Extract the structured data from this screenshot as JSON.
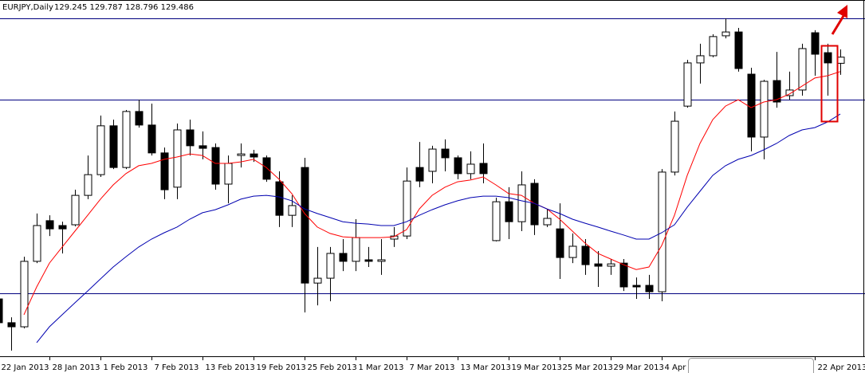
{
  "chart_data": {
    "type": "candlestick",
    "title": "EURJPY,Daily",
    "subtitle": "129.245 129.787 128.796 129.486",
    "categories": [
      "22 Jan 2013",
      null,
      null,
      null,
      "28 Jan 2013",
      null,
      null,
      null,
      "1 Feb 2013",
      null,
      null,
      null,
      "7 Feb 2013",
      null,
      null,
      null,
      "13 Feb 2013",
      null,
      null,
      null,
      "19 Feb 2013",
      null,
      null,
      null,
      "25 Feb 2013",
      null,
      null,
      null,
      "1 Mar 2013",
      null,
      null,
      null,
      "7 Mar 2013",
      null,
      null,
      null,
      "13 Mar 2013",
      null,
      null,
      null,
      "19 Mar 2013",
      null,
      null,
      null,
      "25 Mar 2013",
      null,
      null,
      null,
      "29 Mar 2013",
      null,
      null,
      null,
      "4 Apr 2013",
      null,
      null,
      null,
      null,
      null,
      null,
      null,
      null,
      null,
      null,
      null,
      "22 Apr 2013",
      null,
      null
    ],
    "open": [
      120.03,
      119.1,
      118.94,
      121.5,
      123.09,
      122.9,
      122.93,
      124.08,
      124.89,
      126.8,
      125.17,
      127.36,
      126.83,
      125.74,
      124.4,
      126.64,
      126.02,
      125.95,
      124.52,
      125.64,
      125.7,
      125.55,
      124.61,
      123.3,
      125.17,
      120.65,
      120.84,
      121.81,
      121.5,
      121.56,
      121.5,
      122.37,
      122.49,
      125.17,
      125.02,
      125.89,
      125.55,
      124.93,
      125.33,
      122.31,
      123.83,
      123.05,
      124.55,
      122.93,
      122.77,
      121.65,
      122.09,
      121.4,
      121.31,
      121.43,
      120.56,
      120.56,
      120.31,
      124.99,
      127.57,
      129.26,
      129.54,
      130.32,
      130.47,
      128.82,
      126.36,
      128.57,
      127.98,
      128.2,
      130.44,
      129.66,
      129.245
    ],
    "high": [
      120.19,
      119.31,
      121.68,
      123.37,
      123.3,
      123.05,
      124.3,
      125.64,
      127.2,
      127.04,
      127.42,
      127.82,
      127.67,
      125.95,
      126.89,
      127.04,
      126.58,
      126.11,
      125.64,
      126.11,
      125.86,
      125.64,
      125.02,
      124.08,
      125.55,
      122.06,
      122.06,
      122.37,
      123.15,
      122.06,
      122.37,
      122.84,
      125.17,
      126.17,
      126.02,
      126.27,
      125.64,
      125.8,
      126.11,
      123.99,
      124.4,
      125.02,
      124.71,
      123.55,
      123.77,
      122.59,
      122.37,
      121.9,
      121.59,
      121.59,
      120.87,
      120.97,
      125.11,
      127.36,
      129.38,
      130.01,
      130.38,
      131.0,
      130.63,
      129.07,
      128.6,
      129.69,
      128.92,
      130.01,
      130.54,
      130.01,
      129.787
    ],
    "low": [
      118.94,
      118.01,
      118.88,
      121.43,
      122.49,
      121.81,
      122.87,
      123.93,
      124.8,
      125.11,
      125.11,
      126.73,
      125.64,
      123.93,
      123.93,
      125.64,
      125.49,
      124.3,
      123.77,
      125.17,
      125.39,
      124.61,
      122.84,
      122.84,
      119.5,
      119.78,
      119.94,
      121.12,
      121.12,
      121.28,
      120.97,
      122.06,
      122.37,
      124.4,
      124.55,
      125.02,
      124.71,
      124.71,
      124.55,
      122.28,
      122.37,
      122.68,
      122.53,
      122.84,
      120.81,
      121.43,
      120.97,
      120.5,
      120.97,
      120.34,
      120.03,
      120.03,
      119.94,
      124.86,
      127.51,
      128.45,
      129.48,
      130.22,
      128.92,
      125.8,
      125.49,
      127.51,
      127.82,
      127.98,
      128.76,
      127.98,
      128.796
    ],
    "close": [
      119.1,
      118.94,
      121.5,
      122.9,
      122.77,
      122.77,
      124.08,
      124.89,
      126.8,
      125.17,
      127.36,
      126.83,
      125.74,
      124.3,
      126.64,
      126.02,
      125.92,
      124.52,
      125.33,
      125.7,
      125.58,
      124.71,
      123.3,
      123.68,
      120.65,
      120.84,
      121.81,
      121.5,
      122.43,
      121.5,
      121.56,
      122.49,
      124.64,
      124.64,
      125.89,
      125.55,
      124.93,
      125.3,
      124.93,
      123.83,
      123.05,
      124.49,
      122.93,
      123.18,
      121.65,
      122.09,
      121.37,
      121.31,
      121.4,
      120.5,
      120.5,
      120.31,
      124.99,
      126.98,
      129.26,
      129.54,
      130.29,
      130.47,
      129.04,
      126.36,
      128.54,
      127.73,
      128.2,
      129.82,
      129.6,
      129.26,
      129.486
    ],
    "up_color": "#ffffff",
    "down_color": "#000000",
    "wick_color": "#000000",
    "overlays": [
      {
        "color": "#ff0000",
        "values": [
          null,
          null,
          119.41,
          120.5,
          121.43,
          122.06,
          122.68,
          123.3,
          123.93,
          124.49,
          124.93,
          125.24,
          125.33,
          125.49,
          125.58,
          125.7,
          125.64,
          125.33,
          125.33,
          125.39,
          125.49,
          125.17,
          124.71,
          124.15,
          123.37,
          122.84,
          122.59,
          122.46,
          122.43,
          122.43,
          122.43,
          122.46,
          122.74,
          123.55,
          124.08,
          124.4,
          124.61,
          124.68,
          124.8,
          124.49,
          124.15,
          124.08,
          123.77,
          123.55,
          123.15,
          122.68,
          122.21,
          121.81,
          121.59,
          121.37,
          121.18,
          121.28,
          122.12,
          123.3,
          124.86,
          126.11,
          127.04,
          127.57,
          127.82,
          127.51,
          127.73,
          127.82,
          128.04,
          128.35,
          128.67,
          128.76,
          128.92
        ]
      },
      {
        "color": "#0000b0",
        "values": [
          null,
          null,
          null,
          118.32,
          118.94,
          119.41,
          119.88,
          120.34,
          120.81,
          121.28,
          121.68,
          122.06,
          122.37,
          122.62,
          122.84,
          123.15,
          123.4,
          123.52,
          123.71,
          123.93,
          124.05,
          124.08,
          124.02,
          123.87,
          123.55,
          123.37,
          123.21,
          123.05,
          122.99,
          122.96,
          122.9,
          122.9,
          123.05,
          123.3,
          123.52,
          123.71,
          123.87,
          123.99,
          124.05,
          124.05,
          123.99,
          123.87,
          123.77,
          123.55,
          123.37,
          123.15,
          122.99,
          122.84,
          122.68,
          122.53,
          122.37,
          122.37,
          122.62,
          122.93,
          123.62,
          124.24,
          124.86,
          125.24,
          125.49,
          125.64,
          125.86,
          126.11,
          126.42,
          126.64,
          126.73,
          126.95,
          127.26
        ]
      }
    ],
    "hlines": [
      131.0,
      127.82,
      120.25
    ],
    "hline_color": "#000080",
    "ylim": [
      117.85,
      131.72
    ],
    "grid": false
  }
}
